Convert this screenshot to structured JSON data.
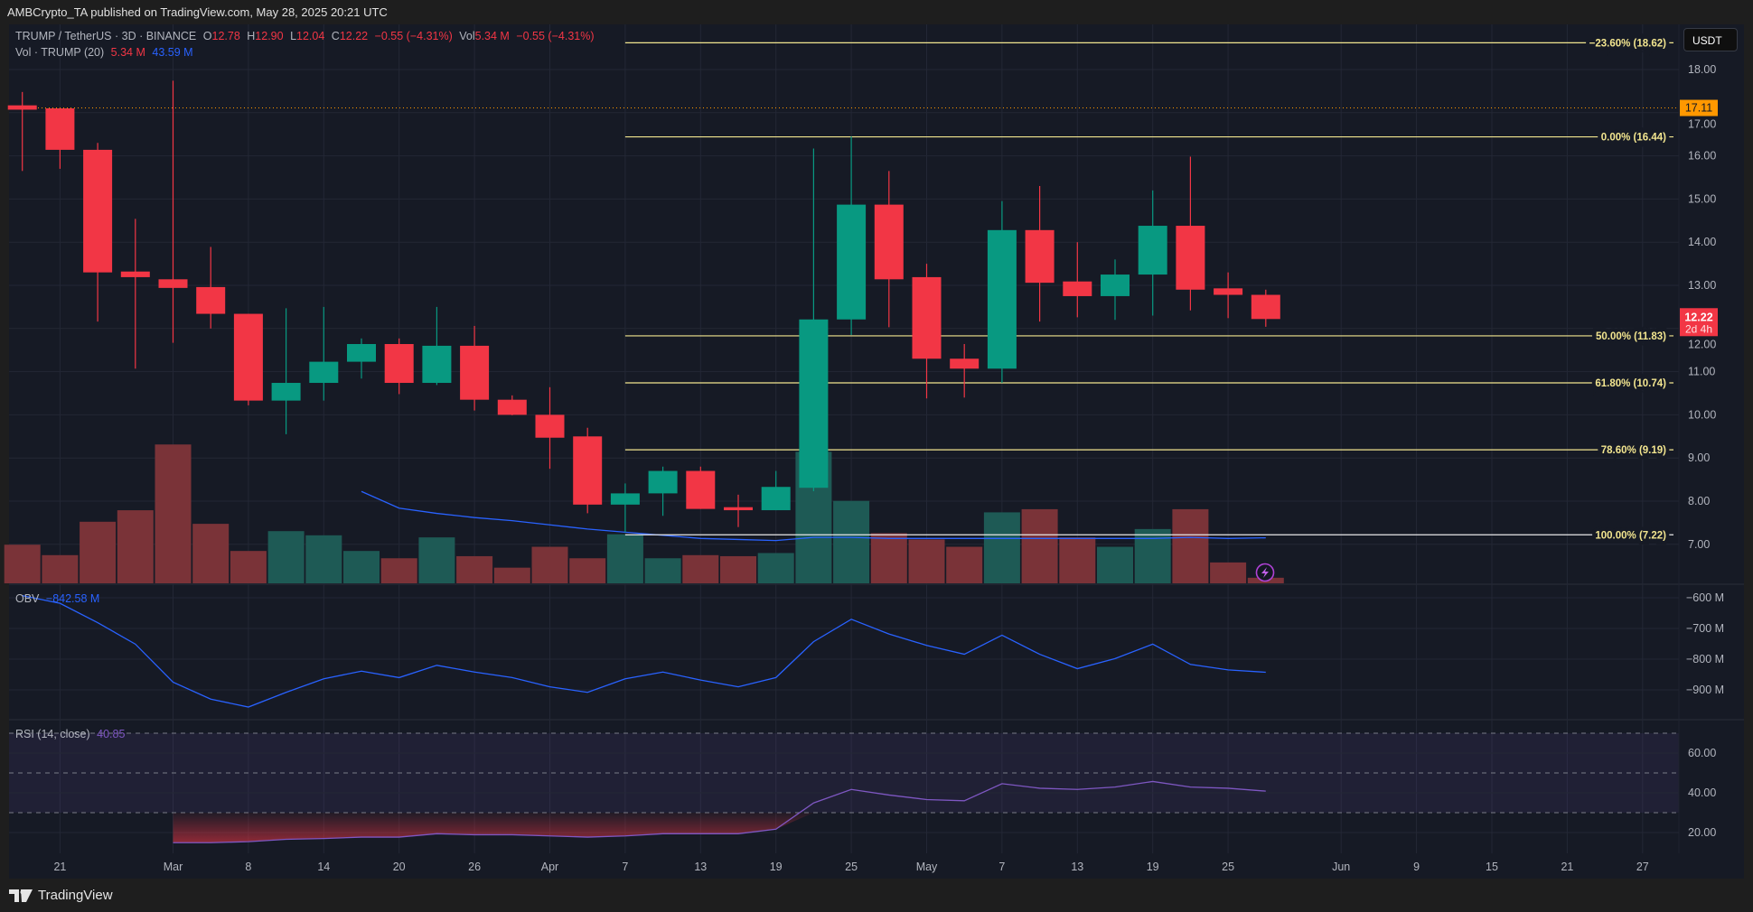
{
  "header": {
    "published": "AMBCrypto_TA published on TradingView.com, May 28, 2025 20:21 UTC"
  },
  "legend": {
    "symbol": "TRUMP / TetherUS · 3D · BINANCE",
    "o_label": "O",
    "o": "12.78",
    "h_label": "H",
    "h": "12.90",
    "l_label": "L",
    "l": "12.04",
    "c_label": "C",
    "c": "12.22",
    "change": "−0.55 (−4.31%)",
    "vol_label": "Vol",
    "vol": "5.34 M",
    "vol_change": "−0.55 (−4.31%)",
    "vol_ind": "Vol · TRUMP (20)",
    "vol_val": "5.34 M",
    "vol_ma": "43.59 M",
    "obv_label": "OBV",
    "obv_val": "−842.58 M",
    "rsi_label": "RSI (14, close)",
    "rsi_val": "40.85"
  },
  "currency": "USDT",
  "footer": {
    "brand": "TradingView"
  },
  "colors": {
    "up": "#089981",
    "down": "#f23645",
    "vol_up": "#1e5a55",
    "vol_down": "#7a3338",
    "fib": "#f2e58f",
    "obv": "#2962ff",
    "rsi": "#7e57c2",
    "last": "#ff9800"
  },
  "chart_data": [
    {
      "type": "candlestick",
      "title": "TRUMP / TetherUS 3D",
      "first_bar": "2025-02-18",
      "interval_days": 3,
      "ohlc": [
        [
          17.17,
          17.48,
          15.65,
          17.07
        ],
        [
          17.1,
          17.1,
          15.7,
          16.14
        ],
        [
          16.14,
          16.3,
          12.16,
          13.3
        ],
        [
          13.32,
          14.54,
          11.07,
          13.19
        ],
        [
          13.14,
          17.74,
          11.67,
          12.94
        ],
        [
          12.96,
          13.89,
          12.0,
          12.34
        ],
        [
          12.34,
          12.34,
          10.22,
          10.33
        ],
        [
          10.33,
          12.47,
          9.55,
          10.74
        ],
        [
          10.74,
          12.5,
          10.33,
          11.23
        ],
        [
          11.23,
          11.77,
          10.84,
          11.64
        ],
        [
          11.64,
          11.77,
          10.48,
          10.74
        ],
        [
          10.74,
          12.5,
          10.69,
          11.6
        ],
        [
          11.6,
          12.06,
          10.1,
          10.35
        ],
        [
          10.35,
          10.45,
          9.99,
          10.0
        ],
        [
          10.0,
          10.64,
          8.75,
          9.47
        ],
        [
          9.5,
          9.7,
          7.72,
          7.92
        ],
        [
          7.92,
          8.41,
          7.28,
          8.18
        ],
        [
          8.18,
          8.8,
          7.66,
          8.7
        ],
        [
          8.7,
          8.8,
          7.82,
          7.82
        ],
        [
          7.86,
          8.15,
          7.4,
          7.79
        ],
        [
          7.79,
          8.7,
          7.79,
          8.33
        ],
        [
          8.31,
          16.17,
          8.23,
          12.21
        ],
        [
          12.21,
          16.45,
          11.85,
          14.87
        ],
        [
          14.87,
          15.65,
          12.03,
          13.14
        ],
        [
          13.19,
          13.5,
          10.38,
          11.3
        ],
        [
          11.3,
          11.64,
          10.4,
          11.07
        ],
        [
          11.07,
          14.95,
          10.74,
          14.28
        ],
        [
          14.28,
          15.3,
          12.16,
          13.06
        ],
        [
          13.09,
          14.0,
          12.26,
          12.75
        ],
        [
          12.75,
          13.6,
          12.2,
          13.25
        ],
        [
          13.25,
          15.2,
          12.3,
          14.38
        ],
        [
          14.38,
          15.98,
          12.42,
          12.9
        ],
        [
          12.93,
          13.3,
          12.24,
          12.78
        ],
        [
          12.78,
          12.9,
          12.04,
          12.22
        ]
      ],
      "volume_m": [
        37,
        27,
        59,
        70,
        133,
        57,
        31,
        50,
        46,
        31,
        24,
        44,
        26,
        15,
        35,
        24,
        47,
        24,
        27,
        26,
        29,
        126,
        79,
        48,
        42,
        35,
        68,
        71,
        44,
        35,
        52,
        71,
        20,
        5.34
      ],
      "volume_ma_m": [
        null,
        null,
        null,
        null,
        null,
        null,
        null,
        null,
        null,
        88,
        72,
        67,
        63,
        60,
        56,
        52,
        49,
        46,
        43,
        42,
        41,
        44,
        44,
        43,
        43,
        43,
        43,
        43,
        43,
        43,
        43,
        44,
        43,
        43.59
      ],
      "y_ticks": [
        7,
        8,
        9,
        10,
        11,
        12,
        13,
        14,
        15,
        16,
        17,
        18
      ],
      "y_tick_labels": [
        "7.00",
        "8.00",
        "9.00",
        "10.00",
        "11.00",
        "12.00",
        "13.00",
        "14.00",
        "15.00",
        "16.00",
        "17.00",
        "18.00"
      ],
      "ylim": [
        6.2,
        19.0
      ],
      "last_price": {
        "value": 17.11,
        "label": "17.11"
      },
      "current_price": {
        "value": 12.22,
        "label": "12.22",
        "countdown": "2d 4h"
      },
      "fib": {
        "start_bar": 16,
        "levels": [
          {
            "label": "−23.60% (18.62)",
            "value": 18.62
          },
          {
            "label": "0.00% (16.44)",
            "value": 16.44
          },
          {
            "label": "50.00% (11.83)",
            "value": 11.83
          },
          {
            "label": "61.80% (10.74)",
            "value": 10.74
          },
          {
            "label": "78.60% (9.19)",
            "value": 9.19
          },
          {
            "label": "100.00% (7.22)",
            "value": 7.22
          }
        ]
      }
    },
    {
      "type": "line",
      "title": "OBV",
      "values_m": [
        -593,
        -618,
        -681,
        -751,
        -875,
        -930,
        -956,
        -908,
        -864,
        -839,
        -860,
        -820,
        -842,
        -860,
        -890,
        -908,
        -864,
        -842,
        -868,
        -890,
        -860,
        -743,
        -670,
        -718,
        -755,
        -784,
        -722,
        -784,
        -831,
        -798,
        -751,
        -817,
        -835,
        -842.58
      ],
      "y_ticks": [
        -600,
        -700,
        -800,
        -900
      ],
      "y_tick_labels": [
        "−600 M",
        "−700 M",
        "−800 M",
        "−900 M"
      ]
    },
    {
      "type": "line",
      "title": "RSI (14, close)",
      "values": [
        null,
        null,
        null,
        null,
        14.9,
        14.9,
        15.4,
        16.6,
        17,
        17.7,
        17.7,
        19.4,
        18.9,
        18.9,
        18.3,
        17.7,
        18.3,
        19.4,
        19.4,
        19.4,
        21.7,
        34.9,
        41.7,
        38.9,
        36.6,
        36,
        44.6,
        42.3,
        41.7,
        42.9,
        45.7,
        42.9,
        42.3,
        40.85
      ],
      "bands": [
        70,
        50,
        30
      ],
      "y_ticks": [
        20,
        40,
        60
      ],
      "y_tick_labels": [
        "20.00",
        "40.00",
        "60.00"
      ]
    }
  ],
  "x_axis": [
    {
      "label": "21",
      "bar": 1
    },
    {
      "label": "Mar",
      "bar": 4
    },
    {
      "label": "8",
      "bar": 6
    },
    {
      "label": "14",
      "bar": 8
    },
    {
      "label": "20",
      "bar": 10
    },
    {
      "label": "26",
      "bar": 12
    },
    {
      "label": "Apr",
      "bar": 14
    },
    {
      "label": "7",
      "bar": 16
    },
    {
      "label": "13",
      "bar": 18
    },
    {
      "label": "19",
      "bar": 20
    },
    {
      "label": "25",
      "bar": 22
    },
    {
      "label": "May",
      "bar": 24
    },
    {
      "label": "7",
      "bar": 26
    },
    {
      "label": "13",
      "bar": 28
    },
    {
      "label": "19",
      "bar": 30
    },
    {
      "label": "25",
      "bar": 32
    },
    {
      "label": "Jun",
      "bar": 35
    },
    {
      "label": "9",
      "bar": 37
    },
    {
      "label": "15",
      "bar": 39
    },
    {
      "label": "21",
      "bar": 41
    },
    {
      "label": "27",
      "bar": 43
    }
  ]
}
